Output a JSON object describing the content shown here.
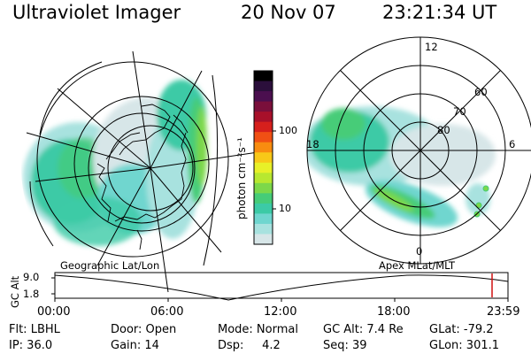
{
  "header": {
    "title": "Ultraviolet Imager",
    "date": "20 Nov 07",
    "time": "23:21:34 UT"
  },
  "colorbar": {
    "label": "photon cm⁻²s⁻¹",
    "ticks": [
      "100",
      "10"
    ],
    "colors": [
      "#000000",
      "#2b0f3b",
      "#4b0f4f",
      "#7a0f3b",
      "#a8102a",
      "#d6201c",
      "#f05014",
      "#f88c10",
      "#f8c818",
      "#e8f028",
      "#b8e830",
      "#7cd84a",
      "#46cc78",
      "#3ccaa6",
      "#6fd6cf",
      "#a8e2df",
      "#d7e6e8"
    ]
  },
  "left_map": {
    "label": "Geographic Lat/Lon"
  },
  "right_map": {
    "label": "Apex MLat/MLT",
    "lat_labels": [
      "80",
      "70",
      "60"
    ],
    "mlt_labels": [
      "12",
      "18",
      "6",
      "0"
    ]
  },
  "timeline": {
    "y_label": "GC Alt",
    "y_ticks": [
      "9.0",
      "1.8"
    ],
    "x_ticks": [
      "00:00",
      "06:00",
      "12:00",
      "18:00",
      "23:59"
    ],
    "marker_color": "#d01010"
  },
  "footer": [
    {
      "key": "flt",
      "text": "Flt: LBHL"
    },
    {
      "key": "ip",
      "text": "IP: 36.0"
    },
    {
      "key": "door",
      "text": "Door: Open"
    },
    {
      "key": "gain",
      "text": "Gain: 14"
    },
    {
      "key": "mode",
      "text": "Mode: Normal"
    },
    {
      "key": "dsp",
      "text": "Dsp:     4.2"
    },
    {
      "key": "gcalt",
      "text": "GC Alt: 7.4 Re"
    },
    {
      "key": "seq",
      "text": "Seq: 39"
    },
    {
      "key": "glat",
      "text": "GLat: -79.2"
    },
    {
      "key": "glon",
      "text": "GLon: 301.1"
    }
  ]
}
